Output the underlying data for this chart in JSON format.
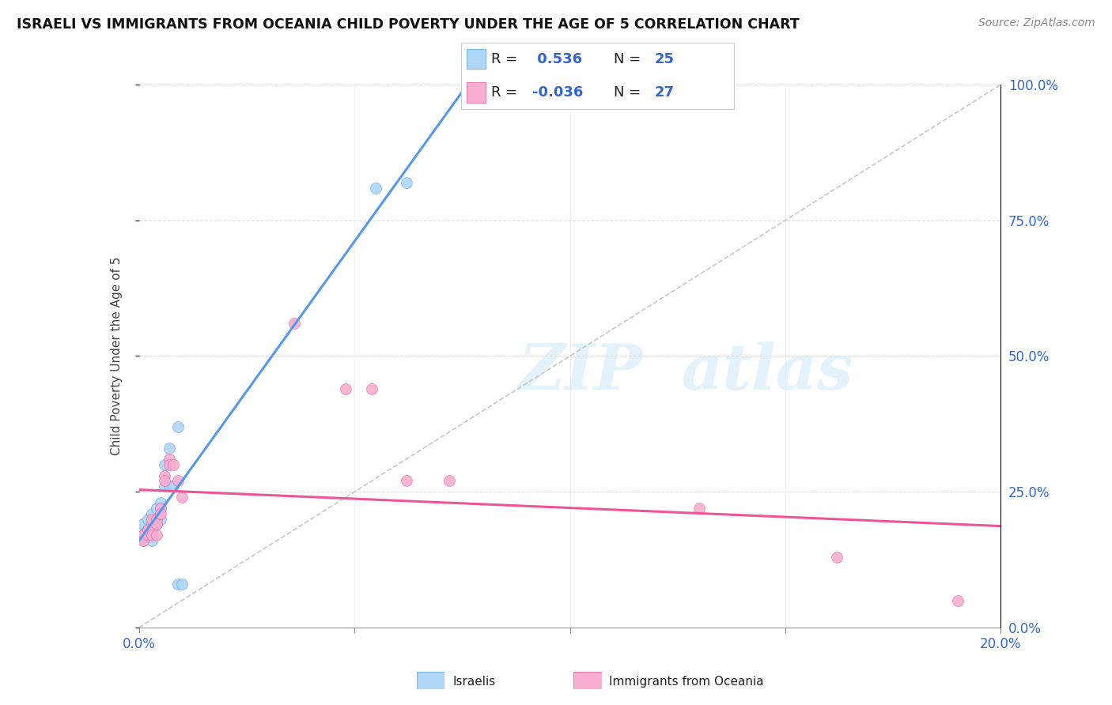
{
  "title": "ISRAELI VS IMMIGRANTS FROM OCEANIA CHILD POVERTY UNDER THE AGE OF 5 CORRELATION CHART",
  "source": "Source: ZipAtlas.com",
  "ylabel": "Child Poverty Under the Age of 5",
  "r_israeli": 0.536,
  "n_israeli": 25,
  "r_oceania": -0.036,
  "n_oceania": 27,
  "israeli_color": "#aed6f7",
  "oceania_color": "#f7aed0",
  "trendline_israeli_color": "#5599ee",
  "trendline_oceania_color": "#ee5599",
  "diagonal_color": "#bbbbbb",
  "watermark_zip": "ZIP",
  "watermark_atlas": "atlas",
  "israeli_scatter": [
    [
      0.001,
      0.19
    ],
    [
      0.001,
      0.17
    ],
    [
      0.001,
      0.16
    ],
    [
      0.002,
      0.2
    ],
    [
      0.002,
      0.18
    ],
    [
      0.002,
      0.17
    ],
    [
      0.003,
      0.21
    ],
    [
      0.003,
      0.19
    ],
    [
      0.003,
      0.16
    ],
    [
      0.004,
      0.22
    ],
    [
      0.004,
      0.2
    ],
    [
      0.004,
      0.19
    ],
    [
      0.005,
      0.23
    ],
    [
      0.005,
      0.22
    ],
    [
      0.005,
      0.2
    ],
    [
      0.006,
      0.3
    ],
    [
      0.006,
      0.26
    ],
    [
      0.007,
      0.33
    ],
    [
      0.007,
      0.26
    ],
    [
      0.008,
      0.26
    ],
    [
      0.009,
      0.37
    ],
    [
      0.009,
      0.08
    ],
    [
      0.01,
      0.08
    ],
    [
      0.055,
      0.81
    ],
    [
      0.062,
      0.82
    ]
  ],
  "oceania_scatter": [
    [
      0.001,
      0.17
    ],
    [
      0.001,
      0.16
    ],
    [
      0.002,
      0.18
    ],
    [
      0.002,
      0.17
    ],
    [
      0.003,
      0.2
    ],
    [
      0.003,
      0.18
    ],
    [
      0.003,
      0.17
    ],
    [
      0.004,
      0.2
    ],
    [
      0.004,
      0.19
    ],
    [
      0.004,
      0.17
    ],
    [
      0.005,
      0.22
    ],
    [
      0.005,
      0.21
    ],
    [
      0.006,
      0.28
    ],
    [
      0.006,
      0.27
    ],
    [
      0.007,
      0.31
    ],
    [
      0.007,
      0.3
    ],
    [
      0.008,
      0.3
    ],
    [
      0.009,
      0.27
    ],
    [
      0.01,
      0.24
    ],
    [
      0.036,
      0.56
    ],
    [
      0.048,
      0.44
    ],
    [
      0.054,
      0.44
    ],
    [
      0.062,
      0.27
    ],
    [
      0.072,
      0.27
    ],
    [
      0.13,
      0.22
    ],
    [
      0.162,
      0.13
    ],
    [
      0.19,
      0.05
    ]
  ],
  "xlim": [
    0.0,
    0.2
  ],
  "ylim": [
    0.0,
    1.0
  ],
  "xtick_positions": [
    0.0,
    0.05,
    0.1,
    0.15,
    0.2
  ],
  "ytick_positions": [
    0.0,
    0.25,
    0.5,
    0.75,
    1.0
  ],
  "scatter_size": 100
}
